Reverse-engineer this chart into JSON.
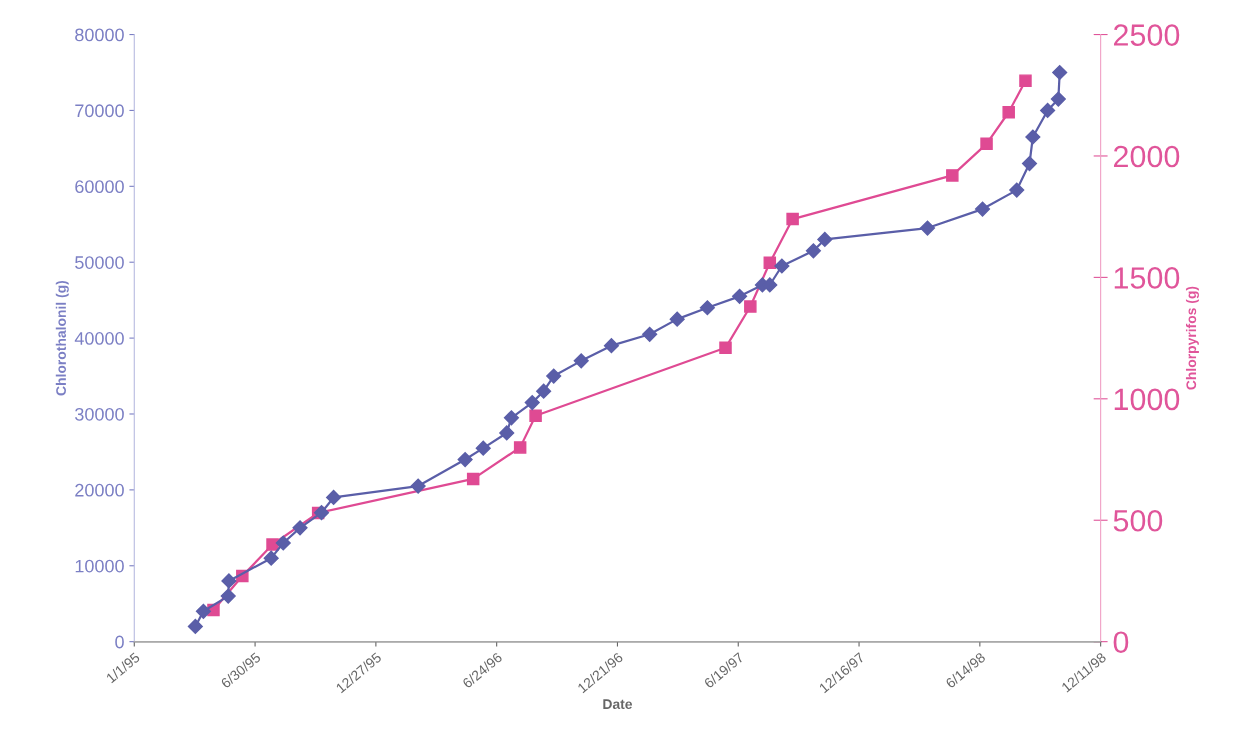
{
  "chart_data": {
    "type": "line",
    "xlabel": "Date",
    "ylabel": "Chlorothalonil (g)",
    "y2label": "Chlorpyrifos (g)",
    "xlim": [
      "1995-01-01",
      "1998-12-11"
    ],
    "xticks": [
      {
        "value": "1995-01-01",
        "label": "1/1/95"
      },
      {
        "value": "1995-06-30",
        "label": "6/30/95"
      },
      {
        "value": "1995-12-27",
        "label": "12/27/95"
      },
      {
        "value": "1996-06-24",
        "label": "6/24/96"
      },
      {
        "value": "1996-12-21",
        "label": "12/21/96"
      },
      {
        "value": "1997-06-19",
        "label": "6/19/97"
      },
      {
        "value": "1997-12-16",
        "label": "12/16/97"
      },
      {
        "value": "1998-06-14",
        "label": "6/14/98"
      },
      {
        "value": "1998-12-11",
        "label": "12/11/98"
      }
    ],
    "ylim": [
      0,
      80000
    ],
    "yticks": [
      0,
      10000,
      20000,
      30000,
      40000,
      50000,
      60000,
      70000,
      80000
    ],
    "y2lim": [
      0,
      2500
    ],
    "y2ticks": [
      0,
      500,
      1000,
      1500,
      2000,
      2500
    ],
    "grid": false,
    "legend": false,
    "line_style": "solid",
    "series": [
      {
        "color": "#5a5ea8",
        "marker": "diamond",
        "x": [
          "1995-04-02",
          "1995-04-14",
          "1995-05-21",
          "1995-05-22",
          "1995-07-24",
          "1995-08-11",
          "1995-09-05",
          "1995-10-07",
          "1995-10-25",
          "1996-02-28",
          "1996-05-08",
          "1996-06-04",
          "1996-07-09",
          "1996-07-16",
          "1996-08-16",
          "1996-09-02",
          "1996-09-17",
          "1996-10-28",
          "1996-12-12",
          "1997-02-07",
          "1997-03-20",
          "1997-05-04",
          "1997-06-21",
          "1997-07-25",
          "1997-08-05",
          "1997-08-23",
          "1997-10-09",
          "1997-10-26",
          "1998-03-28",
          "1998-06-18",
          "1998-08-08",
          "1998-08-27",
          "1998-09-01",
          "1998-09-23",
          "1998-10-09",
          "1998-10-11"
        ],
        "values": [
          2000,
          4000,
          6000,
          8000,
          11000,
          13000,
          15000,
          17000,
          19000,
          20500,
          24000,
          25500,
          27500,
          29500,
          31500,
          33000,
          35000,
          37000,
          39000,
          40500,
          42500,
          44000,
          45500,
          47000,
          47000,
          49500,
          51500,
          53000,
          54500,
          57000,
          59500,
          63000,
          66500,
          70000,
          71500,
          75000
        ]
      },
      {
        "color": "#df4a93",
        "marker": "square",
        "axis": "y2",
        "x": [
          "1995-04-29",
          "1995-06-11",
          "1995-07-26",
          "1995-10-02",
          "1996-05-20",
          "1996-07-29",
          "1996-08-21",
          "1997-05-31",
          "1997-07-07",
          "1997-08-05",
          "1997-09-08",
          "1998-05-04",
          "1998-06-24",
          "1998-07-27",
          "1998-08-21"
        ],
        "values": [
          130,
          270,
          400,
          530,
          670,
          800,
          930,
          1210,
          1380,
          1560,
          1740,
          1920,
          2050,
          2180,
          2310
        ]
      }
    ]
  }
}
